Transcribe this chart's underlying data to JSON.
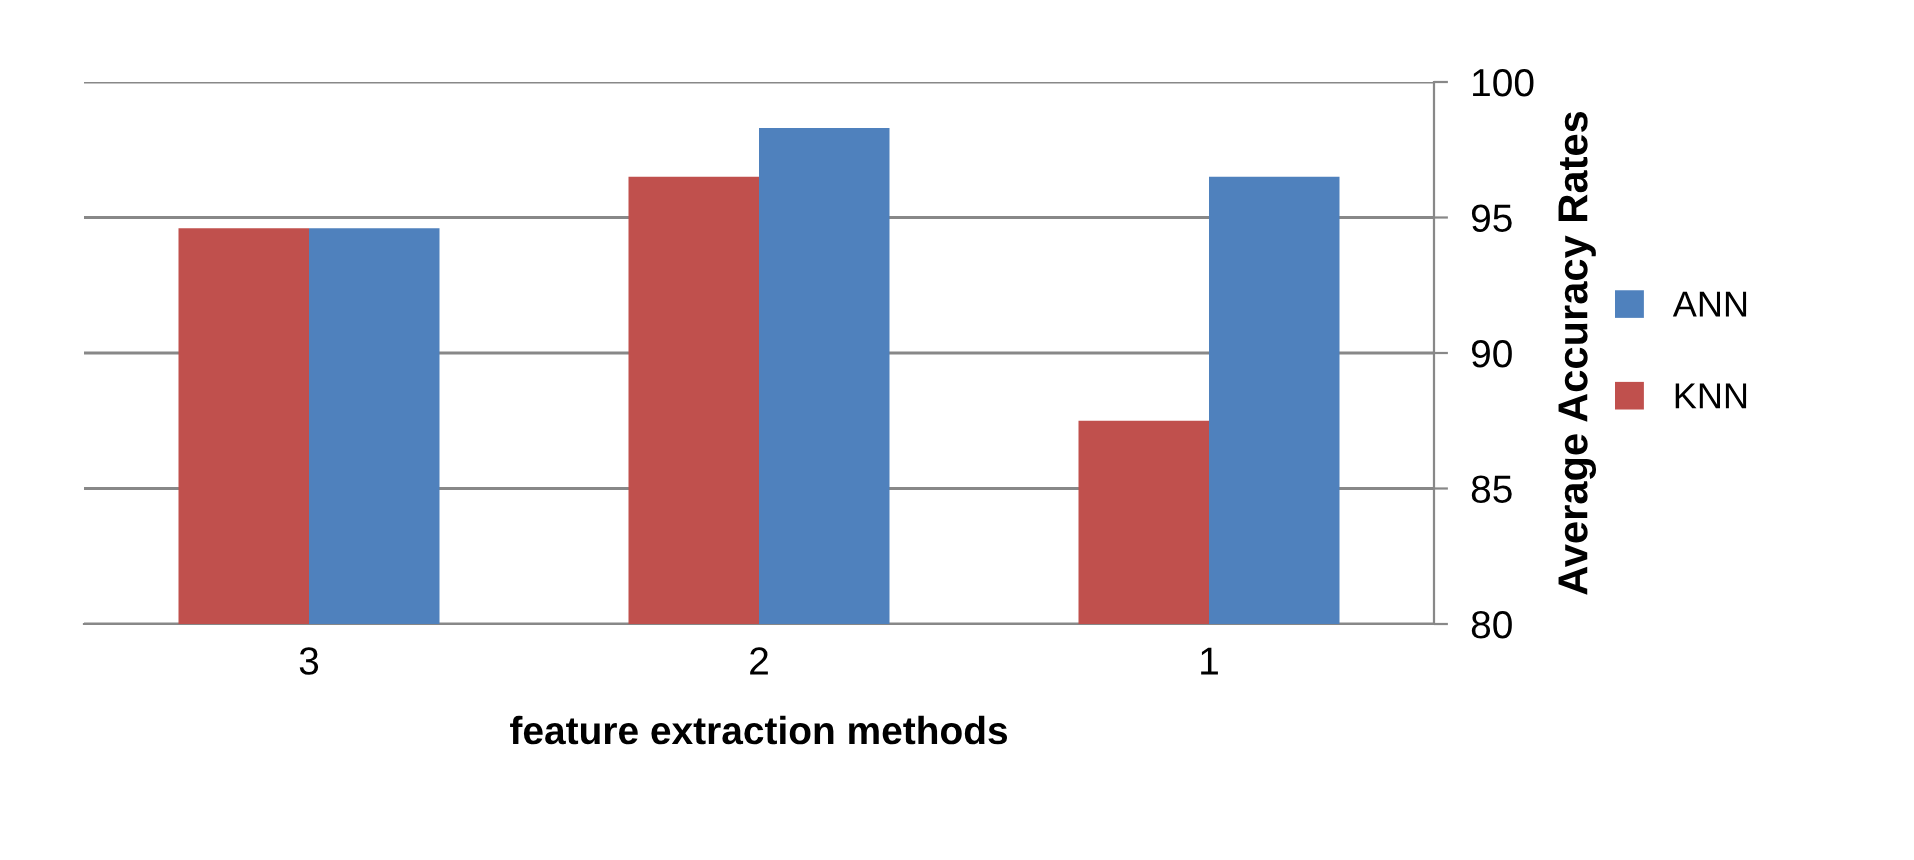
{
  "chart_data": {
    "type": "bar",
    "xlabel": "feature extraction methods",
    "ylabel": "Average Accuracy Rates",
    "categories": [
      "3",
      "2",
      "1"
    ],
    "series": [
      {
        "name": "KNN",
        "color": "#c0504d",
        "values": [
          94.6,
          96.5,
          87.5
        ]
      },
      {
        "name": "ANN",
        "color": "#4f81bd",
        "values": [
          94.6,
          98.3,
          96.5
        ]
      }
    ],
    "ylim": [
      80,
      100
    ],
    "yticks": [
      80,
      85,
      90,
      95,
      100
    ],
    "grid": "y",
    "legend": "right"
  }
}
